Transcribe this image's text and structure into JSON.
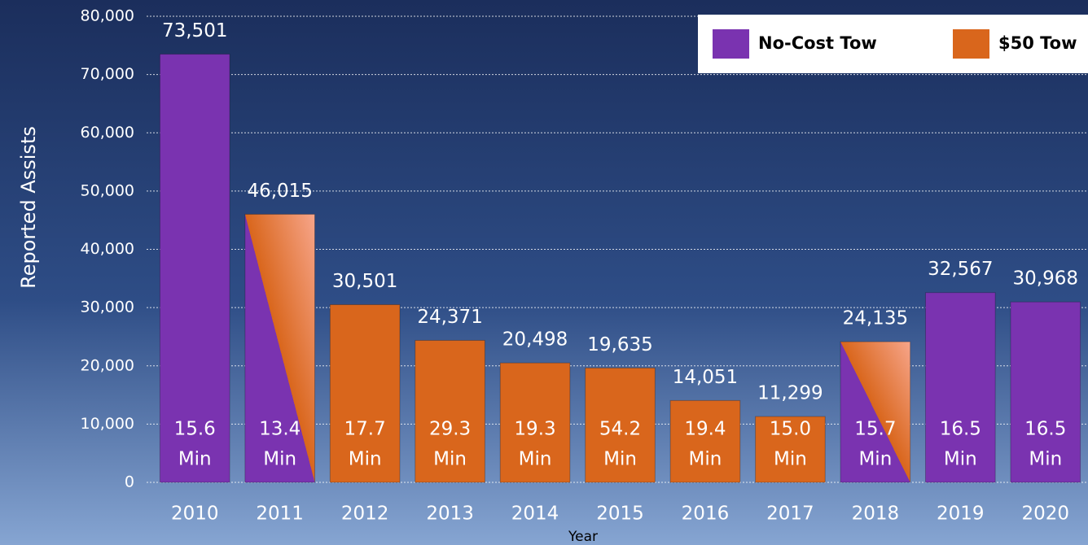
{
  "chart_data": {
    "type": "bar",
    "y_axis_label": "Reported Assists",
    "x_axis_label": "Year",
    "categories": [
      "2010",
      "2011",
      "2012",
      "2013",
      "2014",
      "2015",
      "2016",
      "2017",
      "2018",
      "2019",
      "2020"
    ],
    "values": [
      73501,
      46015,
      30501,
      24371,
      20498,
      19635,
      14051,
      11299,
      24135,
      32567,
      30968
    ],
    "value_labels": [
      "73,501",
      "46,015",
      "30,501",
      "24,371",
      "20,498",
      "19,635",
      "14,051",
      "11,299",
      "24,135",
      "32,567",
      "30,968"
    ],
    "time_labels": [
      [
        "15.6",
        "Min"
      ],
      [
        "13.4",
        "Min"
      ],
      [
        "17.7",
        "Min"
      ],
      [
        "29.3",
        "Min"
      ],
      [
        "19.3",
        "Min"
      ],
      [
        "54.2",
        "Min"
      ],
      [
        "19.4",
        "Min"
      ],
      [
        "15.0",
        "Min"
      ],
      [
        "15.7",
        "Min"
      ],
      [
        "16.5",
        "Min"
      ],
      [
        "16.5",
        "Min"
      ]
    ],
    "series": [
      {
        "name": "No-Cost Tow",
        "color": "#7a33b0"
      },
      {
        "name": "$50 Tow",
        "color": "#d9661c"
      }
    ],
    "bar_series": [
      [
        0
      ],
      [
        0,
        1
      ],
      [
        1
      ],
      [
        1
      ],
      [
        1
      ],
      [
        1
      ],
      [
        1
      ],
      [
        1
      ],
      [
        0,
        1
      ],
      [
        0
      ],
      [
        0
      ]
    ],
    "ylim": [
      0,
      80000
    ],
    "yticks": [
      0,
      {
        "value": 10000,
        "label": "10,000"
      },
      {
        "value": 20000,
        "label": "20,000"
      },
      {
        "value": 30000,
        "label": "30,000"
      },
      {
        "value": 40000,
        "label": "40,000"
      },
      {
        "value": 50000,
        "label": "50,000"
      },
      {
        "value": 60000,
        "label": "60,000"
      },
      {
        "value": 70000,
        "label": "70,000"
      },
      {
        "value": 80000,
        "label": "80,000"
      }
    ],
    "grid": true,
    "legend": "top-right"
  }
}
